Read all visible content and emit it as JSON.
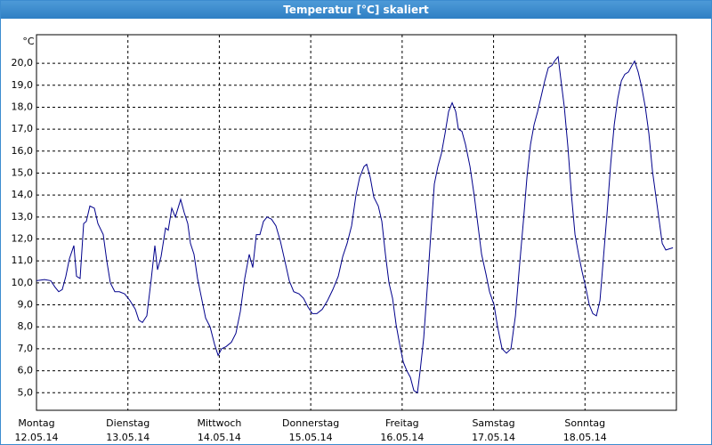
{
  "chart_data": {
    "type": "line",
    "title": "Temperatur [°C] skaliert",
    "y_unit": "°C",
    "color": "#00008b",
    "xlim": [
      0,
      7
    ],
    "xticks": [
      {
        "value": 0,
        "label": "Montag\n12.05.14"
      },
      {
        "value": 1,
        "label": "Dienstag\n13.05.14"
      },
      {
        "value": 2,
        "label": "Mittwoch\n14.05.14"
      },
      {
        "value": 3,
        "label": "Donnerstag\n15.05.14"
      },
      {
        "value": 4,
        "label": "Freitag\n16.05.14"
      },
      {
        "value": 5,
        "label": "Samstag\n17.05.14"
      },
      {
        "value": 6,
        "label": "Sonntag\n18.05.14"
      }
    ],
    "ylim": [
      4.2,
      21.3
    ],
    "yticks": [
      {
        "value": 5,
        "label": "5,0"
      },
      {
        "value": 6,
        "label": "6,0"
      },
      {
        "value": 7,
        "label": "7,0"
      },
      {
        "value": 8,
        "label": "8,0"
      },
      {
        "value": 9,
        "label": "9,0"
      },
      {
        "value": 10,
        "label": "10,0"
      },
      {
        "value": 11,
        "label": "11,0"
      },
      {
        "value": 12,
        "label": "12,0"
      },
      {
        "value": 13,
        "label": "13,0"
      },
      {
        "value": 14,
        "label": "14,0"
      },
      {
        "value": 15,
        "label": "15,0"
      },
      {
        "value": 16,
        "label": "16,0"
      },
      {
        "value": 17,
        "label": "17,0"
      },
      {
        "value": 18,
        "label": "18,0"
      },
      {
        "value": 19,
        "label": "19,0"
      },
      {
        "value": 20,
        "label": "20,0"
      }
    ],
    "grid": true,
    "x": [
      0,
      0.088,
      0.156,
      0.204,
      0.243,
      0.282,
      0.321,
      0.36,
      0.409,
      0.438,
      0.477,
      0.516,
      0.545,
      0.584,
      0.633,
      0.672,
      0.73,
      0.769,
      0.808,
      0.857,
      0.906,
      0.964,
      1.022,
      1.081,
      1.12,
      1.159,
      1.207,
      1.256,
      1.295,
      1.324,
      1.363,
      1.412,
      1.441,
      1.48,
      1.519,
      1.577,
      1.616,
      1.655,
      1.684,
      1.723,
      1.762,
      1.801,
      1.85,
      1.899,
      1.948,
      1.987,
      2.025,
      2.074,
      2.132,
      2.181,
      2.23,
      2.278,
      2.327,
      2.366,
      2.405,
      2.444,
      2.483,
      2.522,
      2.571,
      2.619,
      2.668,
      2.717,
      2.765,
      2.814,
      2.872,
      2.921,
      2.97,
      3.018,
      3.067,
      3.126,
      3.184,
      3.242,
      3.301,
      3.35,
      3.398,
      3.447,
      3.495,
      3.535,
      3.583,
      3.612,
      3.651,
      3.69,
      3.739,
      3.778,
      3.817,
      3.856,
      3.895,
      3.934,
      3.973,
      4.012,
      4.051,
      4.09,
      4.128,
      4.167,
      4.197,
      4.236,
      4.275,
      4.313,
      4.352,
      4.391,
      4.43,
      4.469,
      4.508,
      4.547,
      4.586,
      4.615,
      4.654,
      4.693,
      4.742,
      4.791,
      4.83,
      4.869,
      4.917,
      4.956,
      5.005,
      5.044,
      5.093,
      5.141,
      5.19,
      5.239,
      5.278,
      5.326,
      5.365,
      5.404,
      5.443,
      5.482,
      5.521,
      5.56,
      5.599,
      5.638,
      5.667,
      5.706,
      5.735,
      5.774,
      5.813,
      5.852,
      5.891,
      5.93,
      5.969,
      6.008,
      6.047,
      6.086,
      6.125,
      6.164,
      6.203,
      6.242,
      6.281,
      6.32,
      6.359,
      6.398,
      6.436,
      6.475,
      6.514,
      6.543,
      6.582,
      6.621,
      6.66,
      6.699,
      6.738,
      6.777,
      6.816,
      6.845,
      6.884,
      6.923,
      6.962
    ],
    "values": [
      10.1,
      10.15,
      10.1,
      9.8,
      9.6,
      9.7,
      10.3,
      11.1,
      11.7,
      10.3,
      10.2,
      12.7,
      12.8,
      13.5,
      13.4,
      12.7,
      12.2,
      11.0,
      10.0,
      9.6,
      9.6,
      9.5,
      9.2,
      8.8,
      8.3,
      8.2,
      8.5,
      10.2,
      11.7,
      10.6,
      11.2,
      12.5,
      12.4,
      13.4,
      13.0,
      13.8,
      13.2,
      12.7,
      11.8,
      11.3,
      10.2,
      9.4,
      8.4,
      8.0,
      7.2,
      6.7,
      7.0,
      7.1,
      7.3,
      7.7,
      8.7,
      10.2,
      11.3,
      10.7,
      12.2,
      12.2,
      12.8,
      13.0,
      12.9,
      12.6,
      11.9,
      11.0,
      10.1,
      9.6,
      9.5,
      9.3,
      8.9,
      8.6,
      8.6,
      8.8,
      9.2,
      9.7,
      10.3,
      11.2,
      11.8,
      12.6,
      14.0,
      14.8,
      15.3,
      15.4,
      14.8,
      13.9,
      13.5,
      12.8,
      11.3,
      10.0,
      9.3,
      8.1,
      7.2,
      6.4,
      6.0,
      5.7,
      5.1,
      5.0,
      6.0,
      7.5,
      9.8,
      12.2,
      14.5,
      15.3,
      15.9,
      16.8,
      17.8,
      18.2,
      17.8,
      17.0,
      16.9,
      16.3,
      15.3,
      13.9,
      12.6,
      11.3,
      10.4,
      9.6,
      9.0,
      8.0,
      7.0,
      6.8,
      7.0,
      8.5,
      10.5,
      12.8,
      14.8,
      16.3,
      17.2,
      17.8,
      18.5,
      19.2,
      19.8,
      19.9,
      20.1,
      20.3,
      19.3,
      18.0,
      16.2,
      14.0,
      12.2,
      11.3,
      10.5,
      9.8,
      9.0,
      8.6,
      8.5,
      9.2,
      11.2,
      13.2,
      15.4,
      17.2,
      18.4,
      19.2,
      19.5,
      19.6,
      19.9,
      20.1,
      19.6,
      18.9,
      18.0,
      16.8,
      15.1,
      13.9,
      12.7,
      11.8,
      11.5,
      11.55,
      11.6
    ]
  }
}
